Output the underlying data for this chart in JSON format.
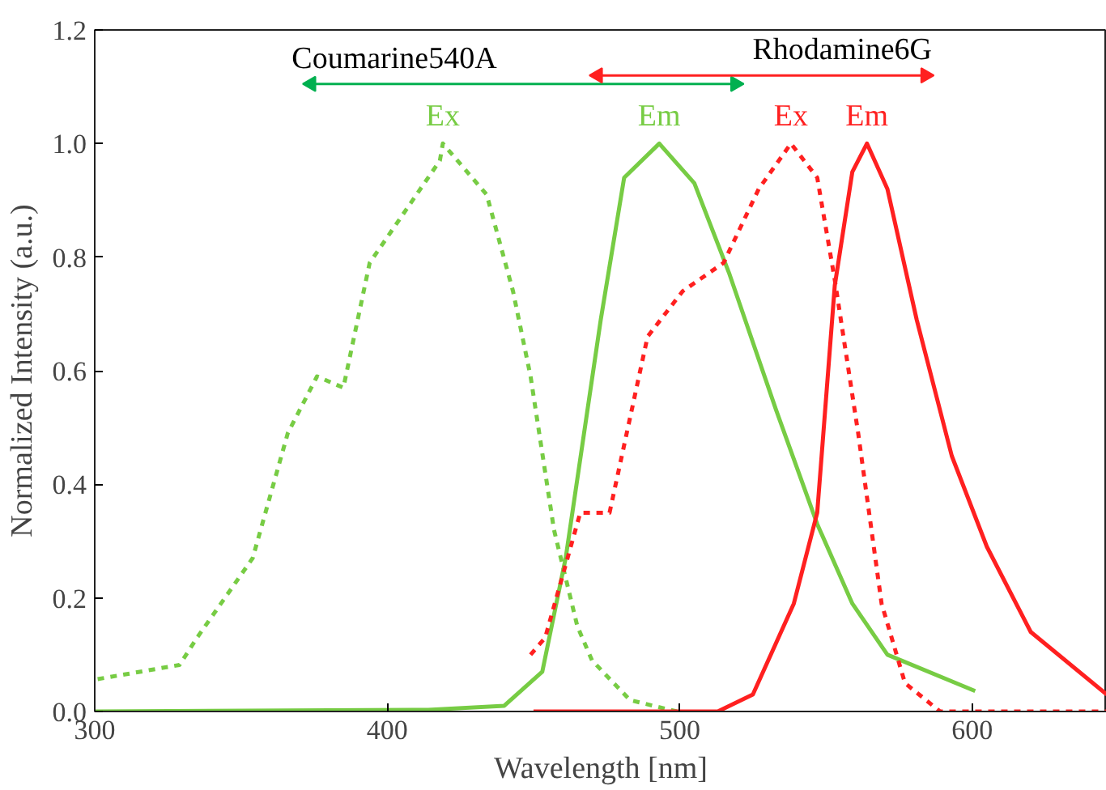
{
  "chart_data": {
    "type": "line",
    "xlabel": "Wavelength [nm]",
    "ylabel": "Normalized Intensity (a.u.)",
    "xlim": [
      300,
      646
    ],
    "ylim": [
      0,
      1.2
    ],
    "xticks": [
      300,
      400,
      500,
      600
    ],
    "yticks": [
      {
        "value": 0,
        "label": "0.0"
      },
      {
        "value": 0.2,
        "label": "0.2"
      },
      {
        "value": 0.4,
        "label": "0.4"
      },
      {
        "value": 0.6,
        "label": "0.6"
      },
      {
        "value": 0.8,
        "label": "0.8"
      },
      {
        "value": 1.0,
        "label": "1.0"
      },
      {
        "value": 1.2,
        "label": "1.2"
      }
    ],
    "grid": false,
    "series": [
      {
        "name": "Ex",
        "color": "#77cc44",
        "line_style": "dotted",
        "x": [
          301,
          329,
          335,
          354,
          366,
          376,
          385,
          394,
          402,
          418,
          419,
          434,
          443,
          449,
          457,
          465,
          470,
          483,
          499
        ],
        "values": [
          0.057,
          0.082,
          0.13,
          0.27,
          0.49,
          0.59,
          0.57,
          0.79,
          0.85,
          0.97,
          1.0,
          0.91,
          0.74,
          0.59,
          0.32,
          0.15,
          0.09,
          0.02,
          0.0
        ]
      },
      {
        "name": "Em",
        "color": "#77cc44",
        "line_style": "solid",
        "x": [
          300,
          414,
          440,
          453,
          461,
          473,
          481,
          493,
          505,
          517,
          533,
          547,
          559,
          571,
          601
        ],
        "values": [
          0.0,
          0.003,
          0.01,
          0.07,
          0.27,
          0.69,
          0.94,
          1.0,
          0.93,
          0.77,
          0.53,
          0.33,
          0.19,
          0.1,
          0.036
        ]
      },
      {
        "name": "Ex",
        "color": "#ff2020",
        "line_style": "dotted",
        "x": [
          449,
          454,
          466,
          476,
          489,
          501,
          515,
          527,
          538,
          547,
          553,
          561,
          569,
          577,
          589,
          646
        ],
        "values": [
          0.1,
          0.13,
          0.35,
          0.35,
          0.66,
          0.74,
          0.79,
          0.92,
          1.0,
          0.94,
          0.76,
          0.49,
          0.19,
          0.05,
          0.0,
          0.0
        ]
      },
      {
        "name": "Em",
        "color": "#ff2020",
        "line_style": "solid",
        "x": [
          450,
          513,
          525,
          539,
          547,
          553,
          559,
          564,
          571,
          581,
          593,
          605,
          620,
          646
        ],
        "values": [
          0.0,
          0.0,
          0.03,
          0.19,
          0.35,
          0.75,
          0.95,
          1.0,
          0.92,
          0.69,
          0.45,
          0.29,
          0.14,
          0.03
        ]
      },
      {
        "name": "Coumarine540A",
        "color": "#00b050",
        "line_style": "solid",
        "marker": "triangle",
        "x": [
          374,
          519
        ],
        "values": [
          1.105,
          1.105
        ]
      },
      {
        "name": "Rhodamine6G",
        "color": "#ff2020",
        "line_style": "solid",
        "marker": "triangle",
        "x": [
          472,
          584
        ],
        "values": [
          1.12,
          1.12
        ]
      }
    ]
  }
}
